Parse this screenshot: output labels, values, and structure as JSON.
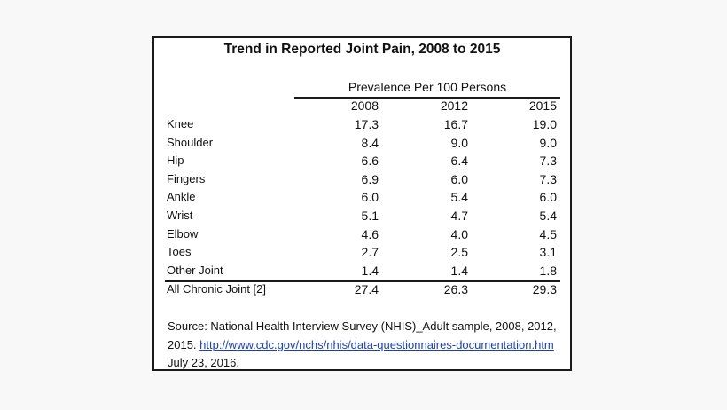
{
  "chart_data": {
    "type": "table",
    "title": "Trend in Reported Joint Pain, 2008 to 2015",
    "group_header": "Prevalence Per 100 Persons",
    "columns": [
      "2008",
      "2012",
      "2015"
    ],
    "rows": [
      {
        "label": "Knee",
        "values": [
          "17.3",
          "16.7",
          "19.0"
        ]
      },
      {
        "label": "Shoulder",
        "values": [
          "8.4",
          "9.0",
          "9.0"
        ]
      },
      {
        "label": "Hip",
        "values": [
          "6.6",
          "6.4",
          "7.3"
        ]
      },
      {
        "label": "Fingers",
        "values": [
          "6.9",
          "6.0",
          "7.3"
        ]
      },
      {
        "label": "Ankle",
        "values": [
          "6.0",
          "5.4",
          "6.0"
        ]
      },
      {
        "label": "Wrist",
        "values": [
          "5.1",
          "4.7",
          "5.4"
        ]
      },
      {
        "label": "Elbow",
        "values": [
          "4.6",
          "4.0",
          "4.5"
        ]
      },
      {
        "label": "Toes",
        "values": [
          "2.7",
          "2.5",
          "3.1"
        ]
      },
      {
        "label": "Other Joint",
        "values": [
          "1.4",
          "1.4",
          "1.8"
        ]
      }
    ],
    "total": {
      "label": "All Chronic Joint [2]",
      "values": [
        "27.4",
        "26.3",
        "29.3"
      ]
    }
  },
  "source": {
    "text_before": "Source: National Health Interview Survey (NHIS)_Adult sample, 2008, 2012, 2015. ",
    "link_text": "http://www.cdc.gov/nchs/nhis/data-questionnaires-documentation.htm",
    "text_after": " July 23, 2016."
  },
  "colors": {
    "link": "#1a3fc4",
    "border": "#1a1a1a",
    "background": "#f8f8f8"
  }
}
